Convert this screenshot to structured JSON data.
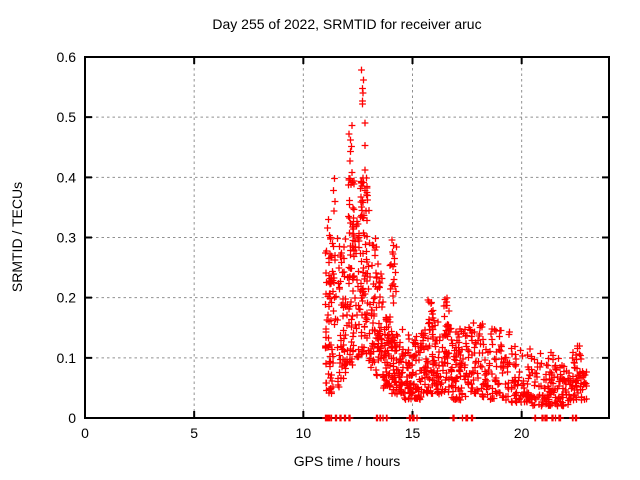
{
  "chart_data": {
    "type": "scatter",
    "title": "Day 255 of 2022, SRMTID for receiver aruc",
    "xlabel": "GPS time / hours",
    "ylabel": "SRMTID / TECUs",
    "xlim": [
      0,
      24
    ],
    "ylim": [
      0,
      0.6
    ],
    "x_ticks": [
      0,
      5,
      10,
      15,
      20
    ],
    "x_tick_labels": [
      "0",
      "5",
      "10",
      "15",
      "20"
    ],
    "y_ticks": [
      0,
      0.1,
      0.2,
      0.3,
      0.4,
      0.5,
      0.6
    ],
    "y_tick_labels": [
      "0",
      "0.1",
      "0.2",
      "0.3",
      "0.4",
      "0.5",
      "0.6"
    ],
    "grid": "dashed",
    "grid_color": "#909090",
    "marker": "plus",
    "marker_color": "#ff0000",
    "background": "#ffffff",
    "series_note": "single red-plus scatter series; no data before 11h, sharp peak ~12.7h reaching 0.578 TECU, decaying noisy band 0.02-0.15 until ~23h",
    "feature_points": [
      [
        12.67,
        0.578
      ],
      [
        12.75,
        0.562
      ],
      [
        12.72,
        0.548
      ],
      [
        12.74,
        0.54
      ],
      [
        12.7,
        0.527
      ],
      [
        12.71,
        0.522
      ],
      [
        12.82,
        0.49
      ],
      [
        12.24,
        0.486
      ],
      [
        12.1,
        0.472
      ],
      [
        12.17,
        0.462
      ],
      [
        12.82,
        0.453
      ],
      [
        12.21,
        0.451
      ],
      [
        12.17,
        0.443
      ],
      [
        12.14,
        0.427
      ],
      [
        12.82,
        0.412
      ],
      [
        12.24,
        0.408
      ],
      [
        12.95,
        0.362
      ],
      [
        13.0,
        0.345
      ],
      [
        12.92,
        0.328
      ],
      [
        11.42,
        0.398
      ],
      [
        11.38,
        0.378
      ],
      [
        11.45,
        0.36
      ],
      [
        11.4,
        0.344
      ],
      [
        11.15,
        0.33
      ],
      [
        11.1,
        0.316
      ],
      [
        11.2,
        0.303
      ],
      [
        14.05,
        0.296
      ],
      [
        14.12,
        0.287
      ],
      [
        14.08,
        0.276
      ],
      [
        14.18,
        0.265
      ],
      [
        14.1,
        0.252
      ],
      [
        14.22,
        0.242
      ],
      [
        14.15,
        0.23
      ],
      [
        14.06,
        0.22
      ],
      [
        14.25,
        0.21
      ],
      [
        13.3,
        0.298
      ],
      [
        13.36,
        0.284
      ],
      [
        13.28,
        0.27
      ],
      [
        13.42,
        0.256
      ],
      [
        13.33,
        0.241
      ],
      [
        13.47,
        0.226
      ],
      [
        15.72,
        0.196
      ],
      [
        15.85,
        0.19
      ],
      [
        15.95,
        0.179
      ],
      [
        16.48,
        0.197
      ],
      [
        16.45,
        0.186
      ]
    ],
    "zero_baseline_x": [
      11.02,
      11.05,
      11.08,
      11.11,
      11.14,
      11.17,
      11.2,
      11.23,
      11.28,
      11.48,
      11.52,
      11.68,
      11.72,
      11.88,
      11.92,
      12.1,
      12.14,
      13.36,
      13.4,
      13.5,
      13.54,
      13.66,
      13.8,
      13.84,
      14.86,
      14.9,
      15.0,
      15.04,
      15.08,
      15.2,
      16.86,
      16.9,
      17.28,
      17.44,
      17.48,
      17.52,
      17.7,
      17.74,
      20.6,
      20.64,
      20.94,
      20.98,
      21.08,
      21.12,
      21.16,
      21.4,
      21.44,
      21.54,
      21.7,
      21.74,
      21.78,
      22.32,
      22.36,
      22.46,
      22.5
    ],
    "cloud_clusters": [
      {
        "x0": 11.0,
        "x1": 11.3,
        "y0": 0.04,
        "y1": 0.3,
        "n": 60,
        "cols": 3,
        "skew": 1.3
      },
      {
        "x0": 11.3,
        "x1": 11.8,
        "y0": 0.05,
        "y1": 0.3,
        "n": 50,
        "cols": 4,
        "skew": 1.4
      },
      {
        "x0": 11.8,
        "x1": 12.05,
        "y0": 0.06,
        "y1": 0.3,
        "n": 35,
        "cols": 2,
        "skew": 1.3
      },
      {
        "x0": 12.05,
        "x1": 12.35,
        "y0": 0.08,
        "y1": 0.4,
        "n": 55,
        "cols": 2,
        "skew": 1.1
      },
      {
        "x0": 12.35,
        "x1": 12.6,
        "y0": 0.1,
        "y1": 0.34,
        "n": 30,
        "cols": 2,
        "skew": 1.2
      },
      {
        "x0": 12.6,
        "x1": 12.95,
        "y0": 0.1,
        "y1": 0.4,
        "n": 65,
        "cols": 3,
        "skew": 1.0
      },
      {
        "x0": 12.95,
        "x1": 13.3,
        "y0": 0.08,
        "y1": 0.3,
        "n": 40,
        "cols": 3,
        "skew": 1.2
      },
      {
        "x0": 13.3,
        "x1": 13.65,
        "y0": 0.07,
        "y1": 0.24,
        "n": 45,
        "cols": 3,
        "skew": 1.3
      },
      {
        "x0": 13.65,
        "x1": 14.0,
        "y0": 0.05,
        "y1": 0.17,
        "n": 50,
        "cols": 3,
        "skew": 1.3
      },
      {
        "x0": 13.95,
        "x1": 14.35,
        "y0": 0.18,
        "y1": 0.3,
        "n": 10,
        "cols": 2,
        "skew": 1.0
      },
      {
        "x0": 14.0,
        "x1": 14.6,
        "y0": 0.04,
        "y1": 0.15,
        "n": 70,
        "cols": 4,
        "skew": 1.4
      },
      {
        "x0": 14.6,
        "x1": 15.4,
        "y0": 0.03,
        "y1": 0.14,
        "n": 85,
        "cols": 5,
        "skew": 1.4
      },
      {
        "x0": 15.4,
        "x1": 16.1,
        "y0": 0.04,
        "y1": 0.16,
        "n": 75,
        "cols": 5,
        "skew": 1.4
      },
      {
        "x0": 15.6,
        "x1": 16.0,
        "y0": 0.16,
        "y1": 0.2,
        "n": 7,
        "cols": 3,
        "skew": 1.0
      },
      {
        "x0": 16.1,
        "x1": 16.8,
        "y0": 0.04,
        "y1": 0.18,
        "n": 70,
        "cols": 5,
        "skew": 1.4
      },
      {
        "x0": 16.4,
        "x1": 16.6,
        "y0": 0.17,
        "y1": 0.2,
        "n": 4,
        "cols": 1,
        "skew": 1.0
      },
      {
        "x0": 16.8,
        "x1": 17.5,
        "y0": 0.03,
        "y1": 0.15,
        "n": 70,
        "cols": 5,
        "skew": 1.5
      },
      {
        "x0": 17.5,
        "x1": 18.3,
        "y0": 0.03,
        "y1": 0.16,
        "n": 60,
        "cols": 5,
        "skew": 1.5
      },
      {
        "x0": 18.3,
        "x1": 19.5,
        "y0": 0.03,
        "y1": 0.15,
        "n": 80,
        "cols": 6,
        "skew": 1.5
      },
      {
        "x0": 19.5,
        "x1": 20.5,
        "y0": 0.025,
        "y1": 0.12,
        "n": 70,
        "cols": 6,
        "skew": 1.5
      },
      {
        "x0": 20.5,
        "x1": 21.5,
        "y0": 0.02,
        "y1": 0.11,
        "n": 70,
        "cols": 6,
        "skew": 1.5
      },
      {
        "x0": 21.5,
        "x1": 22.3,
        "y0": 0.02,
        "y1": 0.1,
        "n": 60,
        "cols": 5,
        "skew": 1.5
      },
      {
        "x0": 22.3,
        "x1": 22.75,
        "y0": 0.03,
        "y1": 0.12,
        "n": 45,
        "cols": 3,
        "skew": 1.3
      },
      {
        "x0": 22.75,
        "x1": 23.0,
        "y0": 0.03,
        "y1": 0.08,
        "n": 15,
        "cols": 2,
        "skew": 1.3
      },
      {
        "x0": 12.6,
        "x1": 12.9,
        "y0": 0.28,
        "y1": 0.4,
        "n": 10,
        "cols": 2,
        "skew": 1.0
      },
      {
        "x0": 12.05,
        "x1": 12.3,
        "y0": 0.28,
        "y1": 0.4,
        "n": 7,
        "cols": 2,
        "skew": 1.0
      }
    ],
    "seed": 20220255
  }
}
